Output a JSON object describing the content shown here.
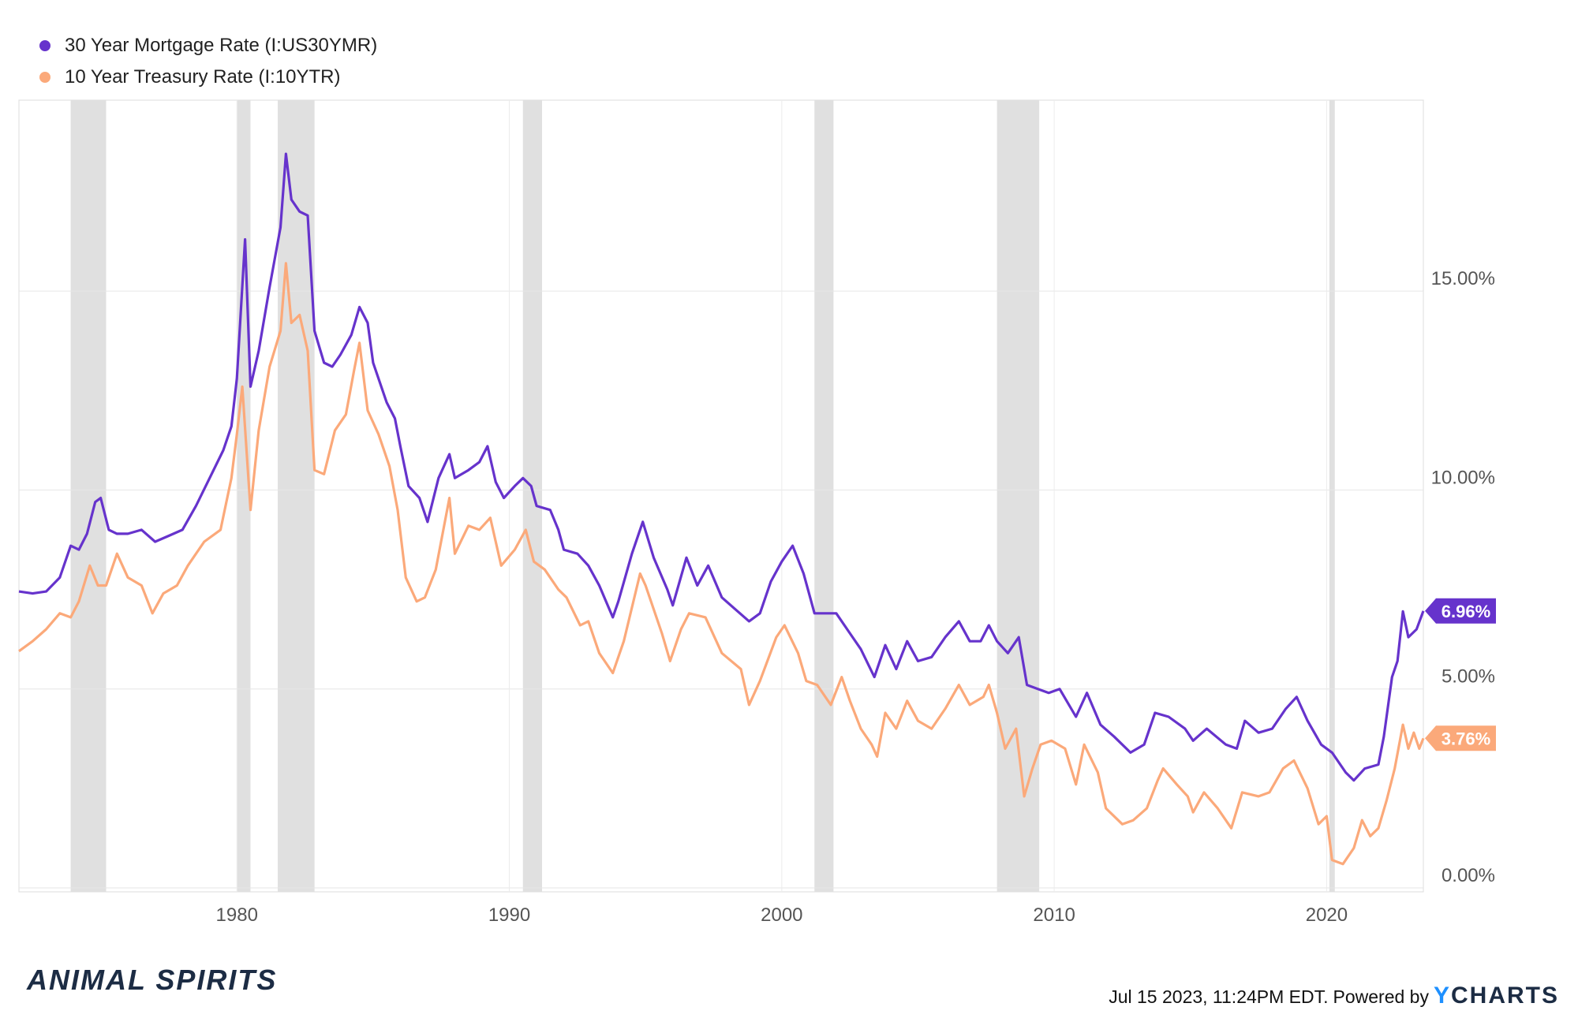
{
  "chart_data": {
    "type": "line",
    "title": "",
    "xlabel": "",
    "ylabel": "",
    "xlim": [
      1972.0,
      2023.55
    ],
    "ylim": [
      -0.1,
      19.8
    ],
    "x_ticks": [
      1980,
      1990,
      2000,
      2010,
      2020
    ],
    "x_tick_labels": [
      "1980",
      "1990",
      "2000",
      "2010",
      "2020"
    ],
    "y_ticks": [
      0,
      5,
      10,
      15
    ],
    "y_tick_labels": [
      "0.00%",
      "5.00%",
      "10.00%",
      "15.00%"
    ],
    "grid": true,
    "legend_position": "top-left",
    "recessions": [
      [
        1973.9,
        1975.2
      ],
      [
        1980.0,
        1980.5
      ],
      [
        1981.5,
        1982.85
      ],
      [
        1990.5,
        1991.2
      ],
      [
        2001.2,
        2001.9
      ],
      [
        2007.9,
        2009.45
      ],
      [
        2020.1,
        2020.3
      ]
    ],
    "series": [
      {
        "name": "30 Year Mortgage Rate (I:US30YMR)",
        "color": "#6633cc",
        "end_label": "6.96%",
        "points": [
          [
            1972.0,
            7.45
          ],
          [
            1972.5,
            7.4
          ],
          [
            1973.0,
            7.45
          ],
          [
            1973.5,
            7.8
          ],
          [
            1973.9,
            8.6
          ],
          [
            1974.2,
            8.5
          ],
          [
            1974.5,
            8.9
          ],
          [
            1974.8,
            9.7
          ],
          [
            1975.0,
            9.8
          ],
          [
            1975.3,
            9.0
          ],
          [
            1975.6,
            8.9
          ],
          [
            1976.0,
            8.9
          ],
          [
            1976.5,
            9.0
          ],
          [
            1977.0,
            8.7
          ],
          [
            1977.5,
            8.85
          ],
          [
            1978.0,
            9.0
          ],
          [
            1978.5,
            9.6
          ],
          [
            1979.0,
            10.3
          ],
          [
            1979.5,
            11.0
          ],
          [
            1979.8,
            11.6
          ],
          [
            1980.0,
            12.8
          ],
          [
            1980.3,
            16.3
          ],
          [
            1980.5,
            12.6
          ],
          [
            1980.8,
            13.5
          ],
          [
            1981.2,
            15.1
          ],
          [
            1981.6,
            16.6
          ],
          [
            1981.8,
            18.45
          ],
          [
            1982.0,
            17.3
          ],
          [
            1982.3,
            17.0
          ],
          [
            1982.6,
            16.9
          ],
          [
            1982.85,
            14.0
          ],
          [
            1983.2,
            13.2
          ],
          [
            1983.5,
            13.1
          ],
          [
            1983.8,
            13.4
          ],
          [
            1984.2,
            13.9
          ],
          [
            1984.5,
            14.6
          ],
          [
            1984.8,
            14.2
          ],
          [
            1985.0,
            13.2
          ],
          [
            1985.5,
            12.2
          ],
          [
            1985.8,
            11.8
          ],
          [
            1986.0,
            11.1
          ],
          [
            1986.3,
            10.1
          ],
          [
            1986.7,
            9.8
          ],
          [
            1987.0,
            9.2
          ],
          [
            1987.4,
            10.3
          ],
          [
            1987.8,
            10.9
          ],
          [
            1988.0,
            10.3
          ],
          [
            1988.5,
            10.5
          ],
          [
            1988.9,
            10.7
          ],
          [
            1989.2,
            11.1
          ],
          [
            1989.5,
            10.2
          ],
          [
            1989.8,
            9.8
          ],
          [
            1990.2,
            10.1
          ],
          [
            1990.5,
            10.3
          ],
          [
            1990.8,
            10.1
          ],
          [
            1991.0,
            9.6
          ],
          [
            1991.5,
            9.5
          ],
          [
            1991.8,
            9.0
          ],
          [
            1992.0,
            8.5
          ],
          [
            1992.5,
            8.4
          ],
          [
            1992.9,
            8.1
          ],
          [
            1993.3,
            7.6
          ],
          [
            1993.8,
            6.8
          ],
          [
            1994.0,
            7.2
          ],
          [
            1994.5,
            8.4
          ],
          [
            1994.9,
            9.2
          ],
          [
            1995.3,
            8.3
          ],
          [
            1995.8,
            7.5
          ],
          [
            1996.0,
            7.1
          ],
          [
            1996.5,
            8.3
          ],
          [
            1996.9,
            7.6
          ],
          [
            1997.3,
            8.1
          ],
          [
            1997.8,
            7.3
          ],
          [
            1998.3,
            7.0
          ],
          [
            1998.8,
            6.7
          ],
          [
            1999.2,
            6.9
          ],
          [
            1999.6,
            7.7
          ],
          [
            2000.0,
            8.2
          ],
          [
            2000.4,
            8.6
          ],
          [
            2000.8,
            7.9
          ],
          [
            2001.2,
            6.9
          ],
          [
            2001.7,
            6.9
          ],
          [
            2002.0,
            6.9
          ],
          [
            2002.5,
            6.4
          ],
          [
            2002.9,
            6.0
          ],
          [
            2003.4,
            5.3
          ],
          [
            2003.8,
            6.1
          ],
          [
            2004.2,
            5.5
          ],
          [
            2004.6,
            6.2
          ],
          [
            2005.0,
            5.7
          ],
          [
            2005.5,
            5.8
          ],
          [
            2006.0,
            6.3
          ],
          [
            2006.5,
            6.7
          ],
          [
            2006.9,
            6.2
          ],
          [
            2007.3,
            6.2
          ],
          [
            2007.6,
            6.6
          ],
          [
            2007.9,
            6.2
          ],
          [
            2008.3,
            5.9
          ],
          [
            2008.7,
            6.3
          ],
          [
            2009.0,
            5.1
          ],
          [
            2009.4,
            5.0
          ],
          [
            2009.8,
            4.9
          ],
          [
            2010.2,
            5.0
          ],
          [
            2010.8,
            4.3
          ],
          [
            2011.2,
            4.9
          ],
          [
            2011.7,
            4.1
          ],
          [
            2012.2,
            3.8
          ],
          [
            2012.8,
            3.4
          ],
          [
            2013.3,
            3.6
          ],
          [
            2013.7,
            4.4
          ],
          [
            2014.2,
            4.3
          ],
          [
            2014.8,
            4.0
          ],
          [
            2015.1,
            3.7
          ],
          [
            2015.6,
            4.0
          ],
          [
            2016.3,
            3.6
          ],
          [
            2016.7,
            3.5
          ],
          [
            2017.0,
            4.2
          ],
          [
            2017.5,
            3.9
          ],
          [
            2018.0,
            4.0
          ],
          [
            2018.5,
            4.5
          ],
          [
            2018.9,
            4.8
          ],
          [
            2019.3,
            4.2
          ],
          [
            2019.8,
            3.6
          ],
          [
            2020.2,
            3.4
          ],
          [
            2020.7,
            2.9
          ],
          [
            2021.0,
            2.7
          ],
          [
            2021.4,
            3.0
          ],
          [
            2021.9,
            3.1
          ],
          [
            2022.1,
            3.8
          ],
          [
            2022.4,
            5.3
          ],
          [
            2022.6,
            5.7
          ],
          [
            2022.8,
            6.95
          ],
          [
            2023.0,
            6.3
          ],
          [
            2023.3,
            6.5
          ],
          [
            2023.55,
            6.96
          ]
        ]
      },
      {
        "name": "10 Year Treasury Rate (I:10YTR)",
        "color": "#fba97a",
        "end_label": "3.76%",
        "points": [
          [
            1972.0,
            5.95
          ],
          [
            1972.5,
            6.2
          ],
          [
            1973.0,
            6.5
          ],
          [
            1973.5,
            6.9
          ],
          [
            1973.9,
            6.8
          ],
          [
            1974.2,
            7.2
          ],
          [
            1974.6,
            8.1
          ],
          [
            1974.9,
            7.6
          ],
          [
            1975.2,
            7.6
          ],
          [
            1975.6,
            8.4
          ],
          [
            1976.0,
            7.8
          ],
          [
            1976.5,
            7.6
          ],
          [
            1976.9,
            6.9
          ],
          [
            1977.3,
            7.4
          ],
          [
            1977.8,
            7.6
          ],
          [
            1978.2,
            8.1
          ],
          [
            1978.8,
            8.7
          ],
          [
            1979.4,
            9.0
          ],
          [
            1979.8,
            10.3
          ],
          [
            1980.0,
            11.4
          ],
          [
            1980.2,
            12.6
          ],
          [
            1980.5,
            9.5
          ],
          [
            1980.8,
            11.5
          ],
          [
            1981.2,
            13.1
          ],
          [
            1981.6,
            14.0
          ],
          [
            1981.8,
            15.7
          ],
          [
            1982.0,
            14.2
          ],
          [
            1982.3,
            14.4
          ],
          [
            1982.6,
            13.5
          ],
          [
            1982.85,
            10.5
          ],
          [
            1983.2,
            10.4
          ],
          [
            1983.6,
            11.5
          ],
          [
            1984.0,
            11.9
          ],
          [
            1984.3,
            13.0
          ],
          [
            1984.5,
            13.7
          ],
          [
            1984.8,
            12.0
          ],
          [
            1985.2,
            11.4
          ],
          [
            1985.6,
            10.6
          ],
          [
            1985.9,
            9.5
          ],
          [
            1986.2,
            7.8
          ],
          [
            1986.6,
            7.2
          ],
          [
            1986.9,
            7.3
          ],
          [
            1987.3,
            8.0
          ],
          [
            1987.8,
            9.8
          ],
          [
            1988.0,
            8.4
          ],
          [
            1988.5,
            9.1
          ],
          [
            1988.9,
            9.0
          ],
          [
            1989.3,
            9.3
          ],
          [
            1989.7,
            8.1
          ],
          [
            1990.2,
            8.5
          ],
          [
            1990.6,
            9.0
          ],
          [
            1990.9,
            8.2
          ],
          [
            1991.3,
            8.0
          ],
          [
            1991.8,
            7.5
          ],
          [
            1992.1,
            7.3
          ],
          [
            1992.6,
            6.6
          ],
          [
            1992.9,
            6.7
          ],
          [
            1993.3,
            5.9
          ],
          [
            1993.8,
            5.4
          ],
          [
            1994.2,
            6.2
          ],
          [
            1994.8,
            7.9
          ],
          [
            1995.0,
            7.6
          ],
          [
            1995.6,
            6.4
          ],
          [
            1995.9,
            5.7
          ],
          [
            1996.3,
            6.5
          ],
          [
            1996.6,
            6.9
          ],
          [
            1997.2,
            6.8
          ],
          [
            1997.8,
            5.9
          ],
          [
            1998.5,
            5.5
          ],
          [
            1998.8,
            4.6
          ],
          [
            1999.2,
            5.2
          ],
          [
            1999.8,
            6.3
          ],
          [
            2000.1,
            6.6
          ],
          [
            2000.6,
            5.9
          ],
          [
            2000.9,
            5.2
          ],
          [
            2001.3,
            5.1
          ],
          [
            2001.8,
            4.6
          ],
          [
            2002.2,
            5.3
          ],
          [
            2002.5,
            4.7
          ],
          [
            2002.9,
            4.0
          ],
          [
            2003.3,
            3.6
          ],
          [
            2003.5,
            3.3
          ],
          [
            2003.8,
            4.4
          ],
          [
            2004.2,
            4.0
          ],
          [
            2004.6,
            4.7
          ],
          [
            2005.0,
            4.2
          ],
          [
            2005.5,
            4.0
          ],
          [
            2006.0,
            4.5
          ],
          [
            2006.5,
            5.1
          ],
          [
            2006.9,
            4.6
          ],
          [
            2007.4,
            4.8
          ],
          [
            2007.6,
            5.1
          ],
          [
            2007.9,
            4.4
          ],
          [
            2008.2,
            3.5
          ],
          [
            2008.6,
            4.0
          ],
          [
            2008.9,
            2.3
          ],
          [
            2009.2,
            3.0
          ],
          [
            2009.5,
            3.6
          ],
          [
            2009.9,
            3.7
          ],
          [
            2010.4,
            3.5
          ],
          [
            2010.8,
            2.6
          ],
          [
            2011.1,
            3.6
          ],
          [
            2011.6,
            2.9
          ],
          [
            2011.9,
            2.0
          ],
          [
            2012.5,
            1.6
          ],
          [
            2012.9,
            1.7
          ],
          [
            2013.4,
            2.0
          ],
          [
            2013.8,
            2.7
          ],
          [
            2014.0,
            3.0
          ],
          [
            2014.5,
            2.6
          ],
          [
            2014.9,
            2.3
          ],
          [
            2015.1,
            1.9
          ],
          [
            2015.5,
            2.4
          ],
          [
            2016.0,
            2.0
          ],
          [
            2016.5,
            1.5
          ],
          [
            2016.9,
            2.4
          ],
          [
            2017.5,
            2.3
          ],
          [
            2017.9,
            2.4
          ],
          [
            2018.4,
            3.0
          ],
          [
            2018.8,
            3.2
          ],
          [
            2019.3,
            2.5
          ],
          [
            2019.7,
            1.6
          ],
          [
            2020.0,
            1.8
          ],
          [
            2020.2,
            0.7
          ],
          [
            2020.6,
            0.6
          ],
          [
            2021.0,
            1.0
          ],
          [
            2021.3,
            1.7
          ],
          [
            2021.6,
            1.3
          ],
          [
            2021.9,
            1.5
          ],
          [
            2022.2,
            2.2
          ],
          [
            2022.5,
            3.0
          ],
          [
            2022.8,
            4.1
          ],
          [
            2023.0,
            3.5
          ],
          [
            2023.2,
            3.9
          ],
          [
            2023.4,
            3.5
          ],
          [
            2023.55,
            3.76
          ]
        ]
      }
    ]
  },
  "legend": [
    {
      "label": "30 Year Mortgage Rate (I:US30YMR)",
      "color": "#6633cc"
    },
    {
      "label": "10 Year Treasury Rate (I:10YTR)",
      "color": "#fba97a"
    }
  ],
  "footer": {
    "brand": "ANIMAL SPIRITS",
    "date": "Jul 15 2023, 11:24PM EDT.",
    "powered": "Powered by",
    "logo_y": "Y",
    "logo_rest": "CHARTS"
  }
}
